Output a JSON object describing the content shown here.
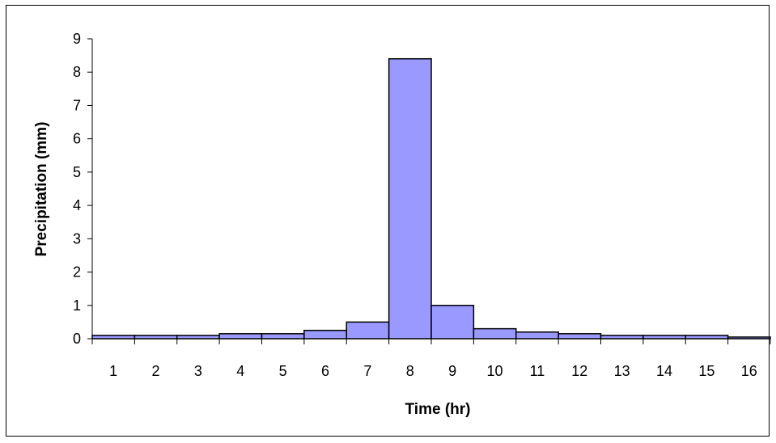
{
  "chart_data": {
    "type": "bar",
    "title": "",
    "xlabel": "Time (hr)",
    "ylabel": "Precipitation (mm)",
    "categories": [
      "1",
      "2",
      "3",
      "4",
      "5",
      "6",
      "7",
      "8",
      "9",
      "10",
      "11",
      "12",
      "13",
      "14",
      "15",
      "16"
    ],
    "values": [
      0.1,
      0.1,
      0.1,
      0.15,
      0.15,
      0.25,
      0.5,
      8.4,
      1.0,
      0.3,
      0.2,
      0.15,
      0.1,
      0.1,
      0.1,
      0.05
    ],
    "ylim": [
      0,
      9
    ],
    "yticks": [
      "0",
      "1",
      "2",
      "3",
      "4",
      "5",
      "6",
      "7",
      "8",
      "9"
    ],
    "grid": false,
    "legend": "none",
    "colors": {
      "bar_fill": "#9999ff",
      "bar_edge": "#000000",
      "axis": "#000000"
    }
  }
}
